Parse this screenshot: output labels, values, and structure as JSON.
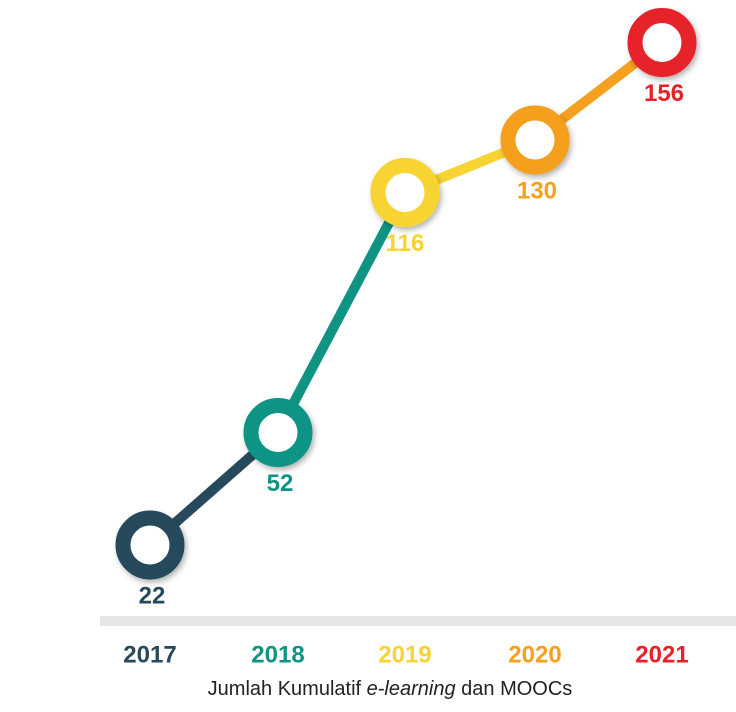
{
  "chart_data": {
    "type": "line",
    "title": [
      "Jumlah Kumulatif",
      "e-learning",
      "dan MOOCs"
    ],
    "categories": [
      "2017",
      "2018",
      "2019",
      "2020",
      "2021"
    ],
    "values": [
      22,
      52,
      116,
      130,
      156
    ],
    "colors": [
      "#264a5b",
      "#0f9484",
      "#f7d433",
      "#f5a01f",
      "#e62129"
    ],
    "ylim": [
      0,
      160
    ]
  }
}
